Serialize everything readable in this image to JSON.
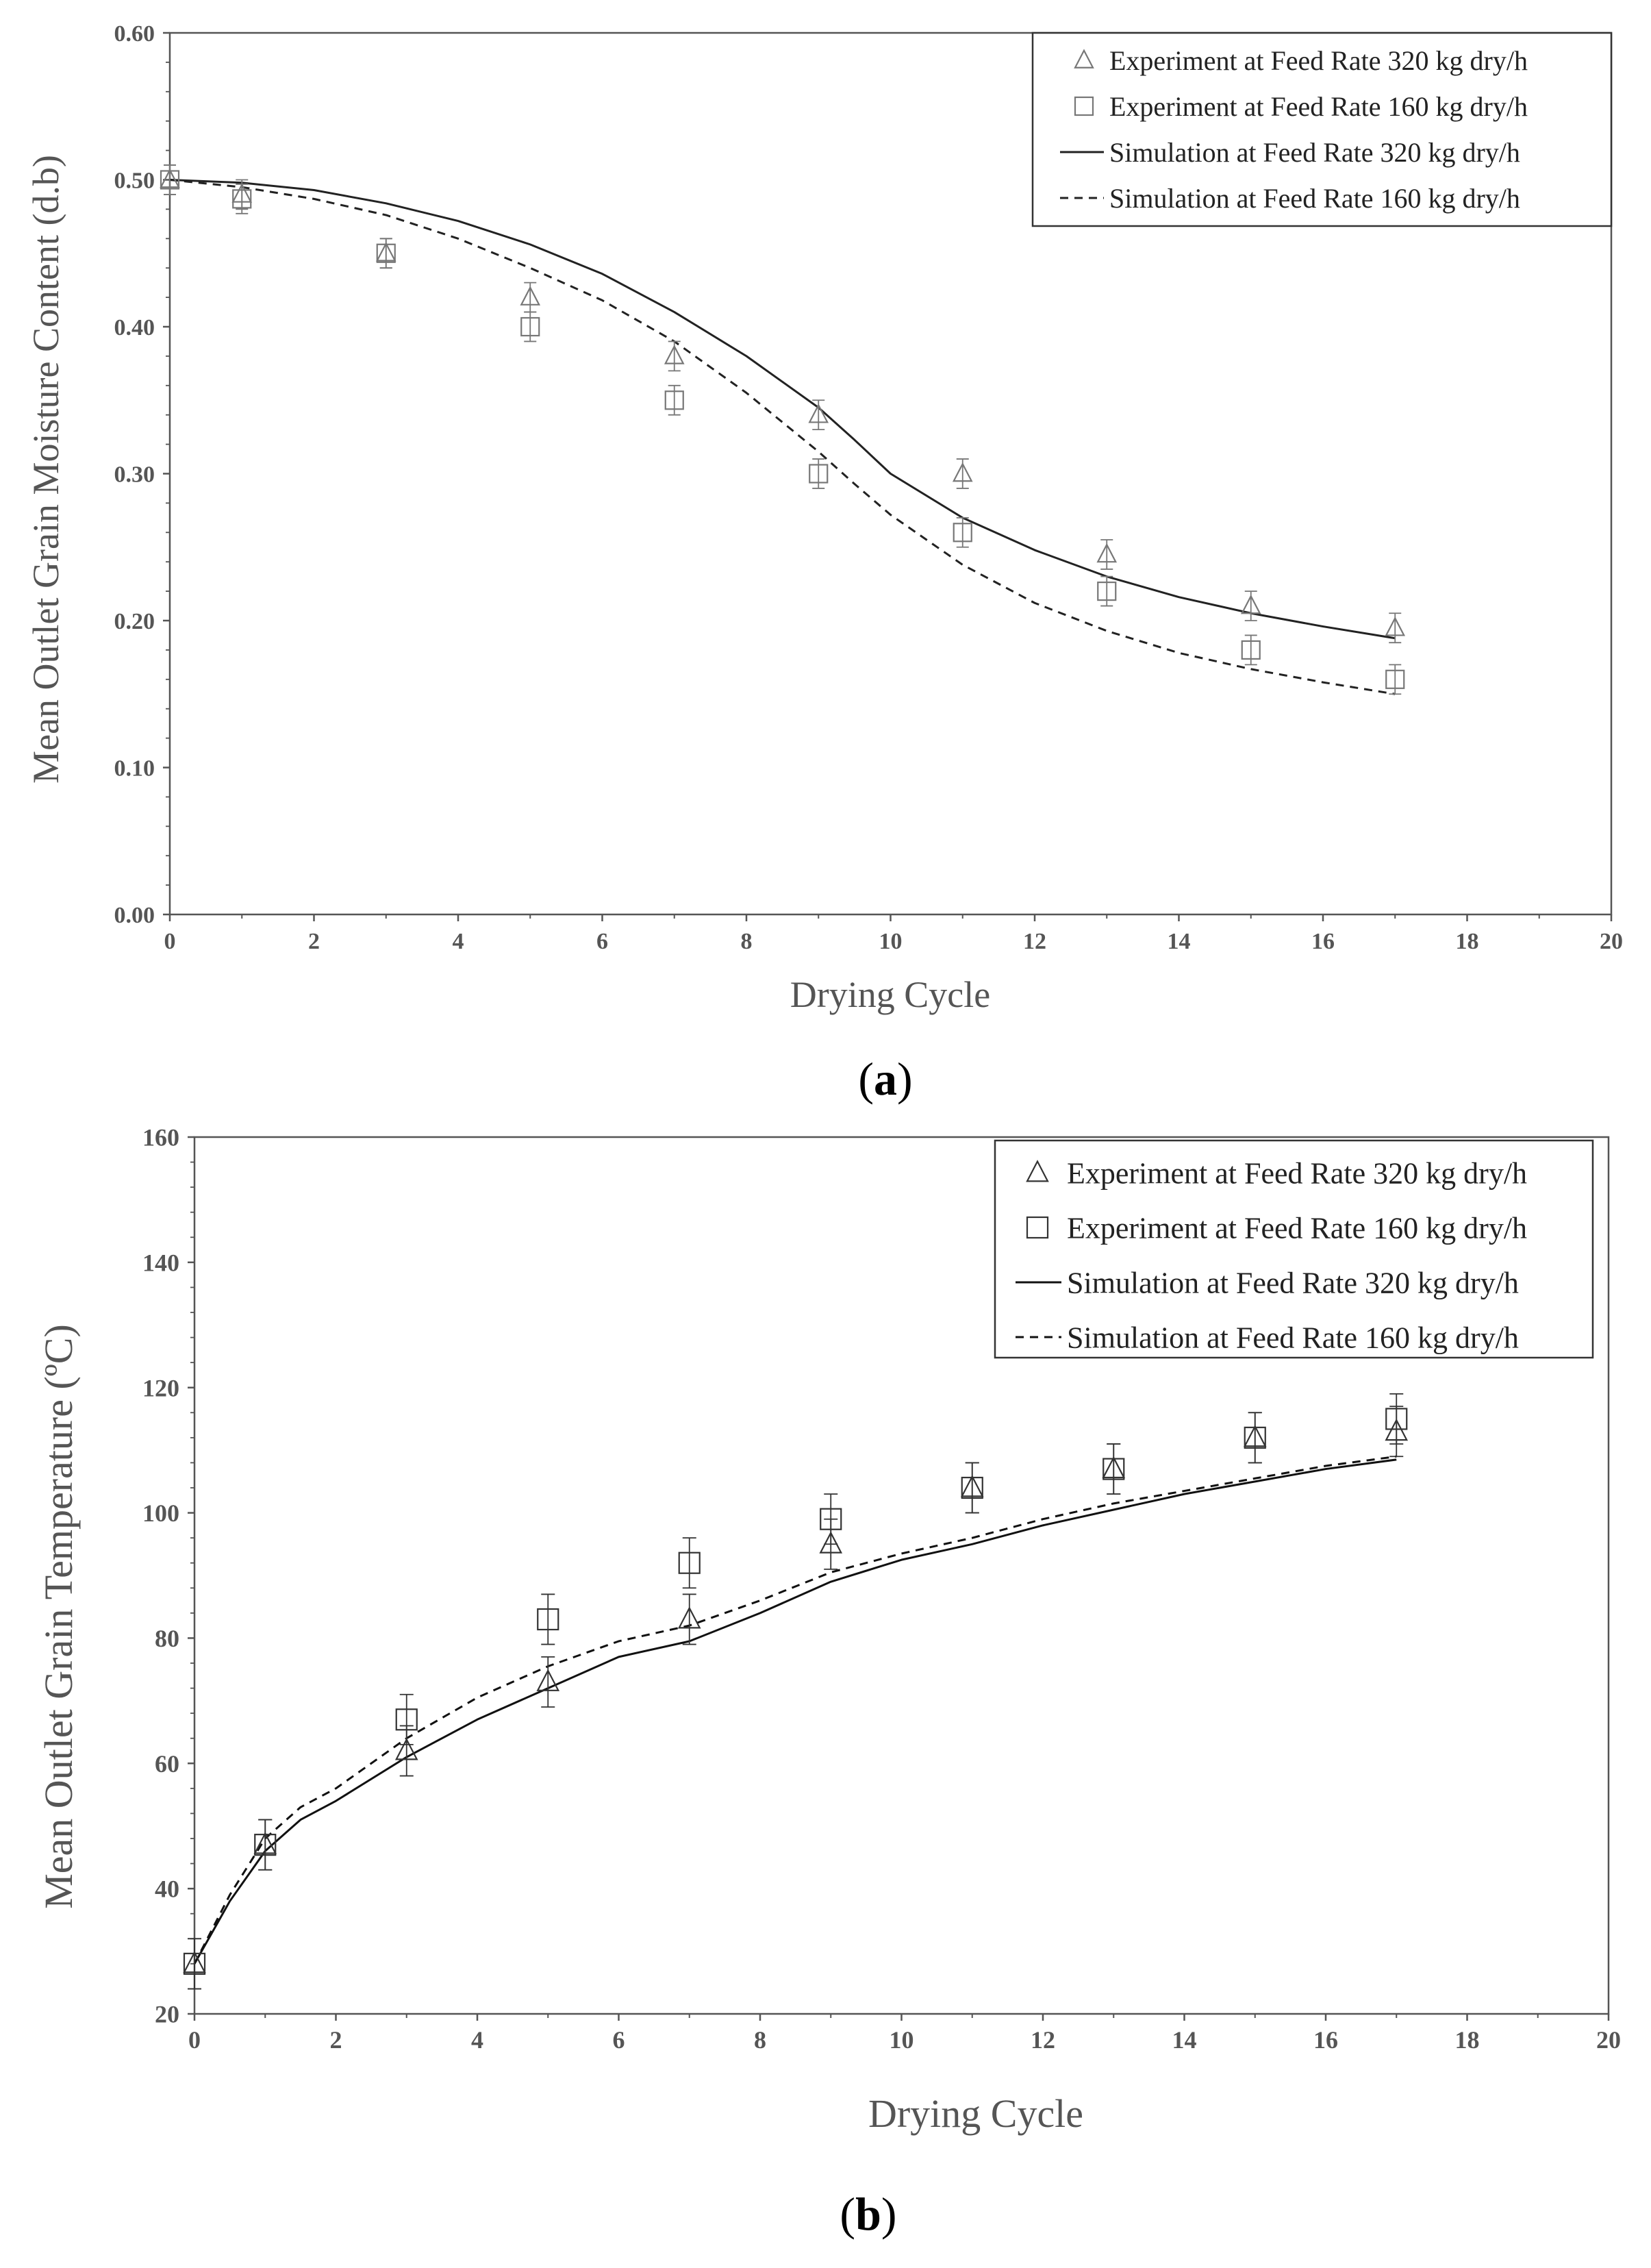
{
  "chart_data": [
    {
      "id": "a",
      "type": "scatter",
      "panel_prefix": "(",
      "panel_letter": "a",
      "panel_suffix": ")",
      "xlabel": "Drying Cycle",
      "ylabel": "Mean Outlet Grain Moisture Content (d.b)",
      "xlim": [
        0,
        20
      ],
      "ylim": [
        0,
        0.6
      ],
      "x_ticks": [
        "0",
        "2",
        "4",
        "6",
        "8",
        "10",
        "12",
        "14",
        "16",
        "18",
        "20"
      ],
      "y_ticks": [
        "0.00",
        "0.10",
        "0.20",
        "0.30",
        "0.40",
        "0.50",
        "0.60"
      ],
      "grid": false,
      "legend_position": "top-right",
      "colors": {
        "marker": "#777777",
        "line": "#222222",
        "axis": "#555555"
      },
      "series": [
        {
          "name": "Experiment at Feed Rate 320 kg dry/h",
          "kind": "points",
          "marker": "triangle",
          "x": [
            0,
            1,
            3,
            5,
            7,
            9,
            11,
            13,
            15,
            17
          ],
          "y": [
            0.5,
            0.49,
            0.45,
            0.42,
            0.38,
            0.34,
            0.3,
            0.245,
            0.21,
            0.195
          ],
          "err": 0.01
        },
        {
          "name": "Experiment at Feed Rate 160 kg dry/h",
          "kind": "points",
          "marker": "square",
          "x": [
            0,
            1,
            3,
            5,
            7,
            9,
            11,
            13,
            15,
            17
          ],
          "y": [
            0.5,
            0.487,
            0.45,
            0.4,
            0.35,
            0.3,
            0.26,
            0.22,
            0.18,
            0.16
          ],
          "err": 0.01
        },
        {
          "name": "Simulation at Feed Rate 320 kg dry/h",
          "kind": "line",
          "dash": "solid",
          "x": [
            0,
            1,
            2,
            3,
            4,
            5,
            6,
            7,
            8,
            9,
            9.5,
            10,
            11,
            12,
            13,
            14,
            15,
            16,
            17
          ],
          "y": [
            0.5,
            0.498,
            0.493,
            0.484,
            0.472,
            0.456,
            0.436,
            0.41,
            0.38,
            0.345,
            0.323,
            0.3,
            0.27,
            0.248,
            0.23,
            0.216,
            0.205,
            0.196,
            0.188
          ]
        },
        {
          "name": "Simulation at Feed Rate 160 kg dry/h",
          "kind": "line",
          "dash": "dashed",
          "x": [
            0,
            1,
            2,
            3,
            4,
            5,
            6,
            7,
            8,
            9,
            9.5,
            10,
            11,
            12,
            13,
            14,
            15,
            16,
            17
          ],
          "y": [
            0.5,
            0.495,
            0.487,
            0.476,
            0.46,
            0.44,
            0.418,
            0.39,
            0.355,
            0.315,
            0.293,
            0.272,
            0.238,
            0.212,
            0.193,
            0.178,
            0.167,
            0.158,
            0.15
          ]
        }
      ]
    },
    {
      "id": "b",
      "type": "scatter",
      "panel_prefix": "(",
      "panel_letter": "b",
      "panel_suffix": ")",
      "xlabel": "Drying Cycle",
      "ylabel": "Mean Outlet Grain Temperature (ºC)",
      "xlim": [
        0,
        20
      ],
      "ylim": [
        20,
        160
      ],
      "x_ticks": [
        "0",
        "2",
        "4",
        "6",
        "8",
        "10",
        "12",
        "14",
        "16",
        "18",
        "20"
      ],
      "y_ticks": [
        "20",
        "40",
        "60",
        "80",
        "100",
        "120",
        "140",
        "160"
      ],
      "grid": false,
      "legend_position": "top-right",
      "colors": {
        "marker": "#333333",
        "line": "#111111",
        "axis": "#555555"
      },
      "series": [
        {
          "name": "Experiment at Feed Rate 320 kg dry/h",
          "kind": "points",
          "marker": "triangle",
          "x": [
            0,
            1,
            3,
            5,
            7,
            9,
            11,
            13,
            15,
            17
          ],
          "y": [
            28,
            47,
            62,
            73,
            83,
            95,
            104,
            107,
            112,
            113
          ],
          "err": 4
        },
        {
          "name": "Experiment at Feed Rate 160 kg dry/h",
          "kind": "points",
          "marker": "square",
          "x": [
            0,
            1,
            3,
            5,
            7,
            9,
            11,
            13,
            15,
            17
          ],
          "y": [
            28,
            47,
            67,
            83,
            92,
            99,
            104,
            107,
            112,
            115
          ],
          "err": 4
        },
        {
          "name": "Simulation at Feed Rate 320 kg dry/h",
          "kind": "line",
          "dash": "solid",
          "x": [
            0,
            0.5,
            1,
            1.5,
            2,
            3,
            4,
            5,
            6,
            7,
            8,
            9,
            10,
            11,
            12,
            13,
            14,
            15,
            16,
            17
          ],
          "y": [
            28,
            38,
            46,
            51,
            54,
            61,
            67,
            72,
            77,
            79.5,
            84,
            89,
            92.5,
            95,
            98,
            100.5,
            103,
            105,
            107,
            108.5
          ]
        },
        {
          "name": "Simulation at Feed Rate 160 kg dry/h",
          "kind": "line",
          "dash": "dashed",
          "x": [
            0,
            0.5,
            1,
            1.5,
            2,
            3,
            4,
            5,
            6,
            7,
            8,
            9,
            10,
            11,
            12,
            13,
            14,
            15,
            16,
            17
          ],
          "y": [
            28,
            39,
            48,
            53,
            56,
            64,
            70.5,
            75.5,
            79.5,
            82,
            86,
            90.5,
            93.5,
            96,
            99,
            101.5,
            103.5,
            105.5,
            107.5,
            109
          ]
        }
      ]
    }
  ]
}
